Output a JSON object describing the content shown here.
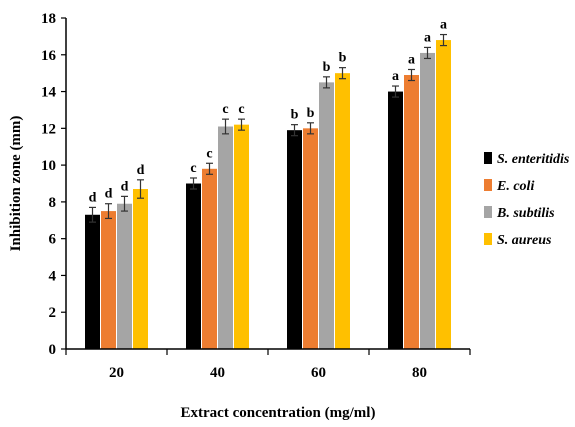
{
  "chart_data": {
    "type": "bar",
    "xlabel": "Extract concentration (mg/ml)",
    "ylabel": "Inhibition zone (mm)",
    "ylim": [
      0,
      18
    ],
    "yticks": [
      0,
      2,
      4,
      6,
      8,
      10,
      12,
      14,
      16,
      18
    ],
    "categories": [
      "20",
      "40",
      "60",
      "80"
    ],
    "grid": false,
    "legend_position": "right",
    "series": [
      {
        "name": "S. enteritidis",
        "color": "#000000",
        "values": [
          7.3,
          9.0,
          11.9,
          14.0
        ],
        "errors": [
          0.4,
          0.3,
          0.3,
          0.3
        ],
        "labels": [
          "d",
          "c",
          "b",
          "a"
        ]
      },
      {
        "name": "E. coli",
        "color": "#ED7D31",
        "values": [
          7.5,
          9.8,
          12.0,
          14.9
        ],
        "errors": [
          0.4,
          0.3,
          0.3,
          0.3
        ],
        "labels": [
          "d",
          "c",
          "b",
          "a"
        ]
      },
      {
        "name": "B. subtilis",
        "color": "#A5A5A5",
        "values": [
          7.9,
          12.1,
          14.5,
          16.1
        ],
        "errors": [
          0.4,
          0.4,
          0.3,
          0.3
        ],
        "labels": [
          "d",
          "c",
          "b",
          "a"
        ]
      },
      {
        "name": "S. aureus",
        "color": "#FFC000",
        "values": [
          8.7,
          12.2,
          15.0,
          16.8
        ],
        "errors": [
          0.5,
          0.3,
          0.3,
          0.3
        ],
        "labels": [
          "d",
          "c",
          "b",
          "a"
        ]
      }
    ]
  }
}
